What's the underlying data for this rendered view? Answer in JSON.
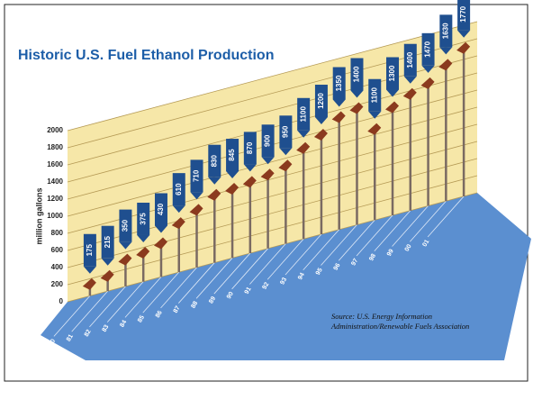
{
  "chart_data": {
    "type": "pole",
    "title": "Historic U.S. Fuel Ethanol Production",
    "y_label": "million gallons",
    "source": "Source: U.S. Energy Information Administration/Renewable Fuels Association",
    "categories": [
      "80",
      "81",
      "82",
      "83",
      "84",
      "85",
      "86",
      "87",
      "88",
      "89",
      "90",
      "91",
      "92",
      "93",
      "94",
      "95",
      "96",
      "97",
      "98",
      "99",
      "00",
      "01"
    ],
    "values": [
      175,
      215,
      350,
      375,
      430,
      610,
      710,
      830,
      845,
      870,
      900,
      950,
      1100,
      1200,
      1350,
      1400,
      1100,
      1300,
      1400,
      1470,
      1630,
      1770
    ],
    "color": "#8b3a1e",
    "label_color": "#1f4f8f",
    "ylim": [
      0,
      2000
    ],
    "yticks": [
      0,
      200,
      400,
      600,
      800,
      1000,
      1200,
      1400,
      1600,
      1800,
      2000
    ],
    "grid": true
  }
}
